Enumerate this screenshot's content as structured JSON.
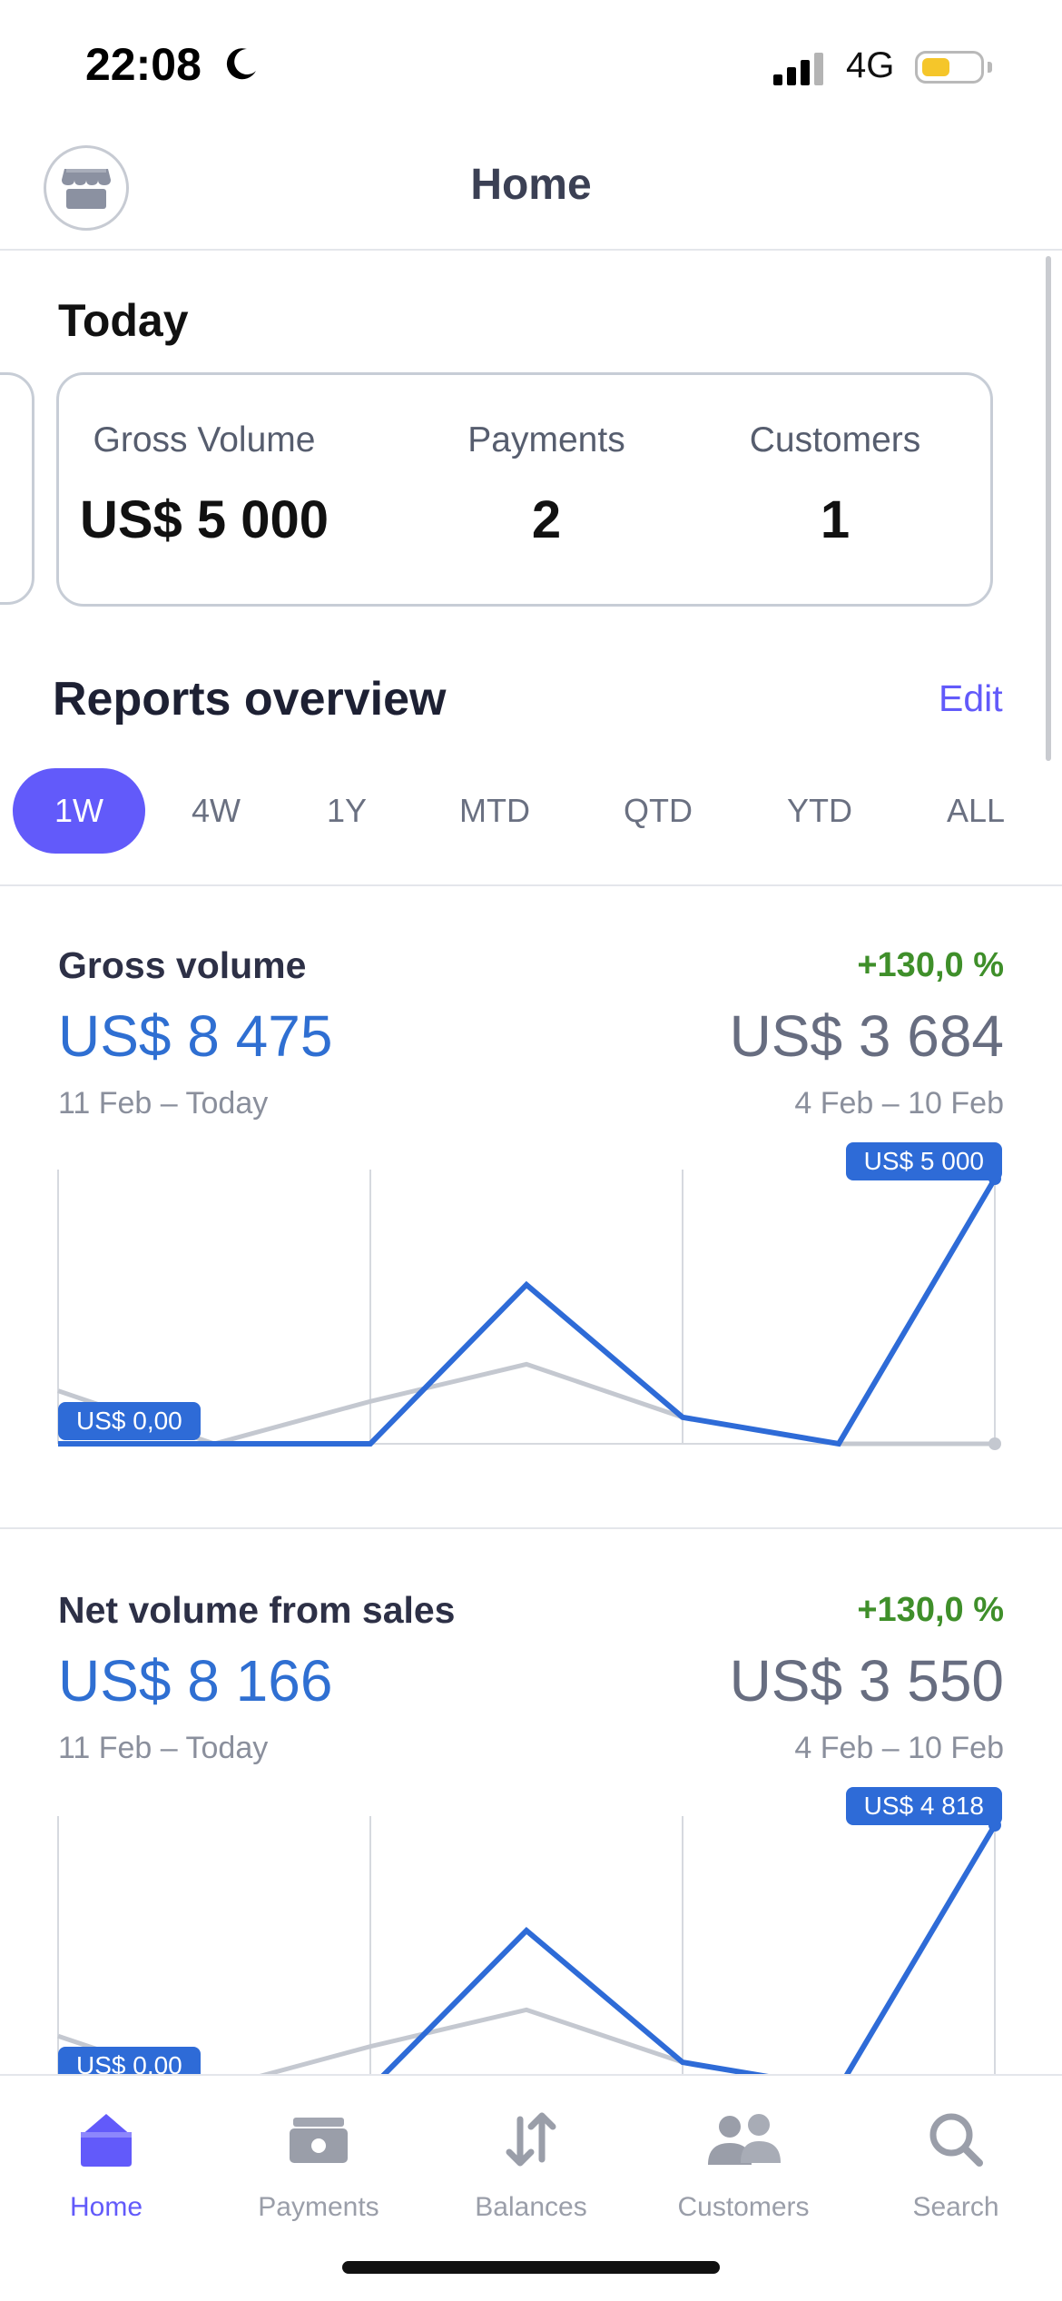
{
  "status_bar": {
    "time": "22:08",
    "network": "4G"
  },
  "nav": {
    "title": "Home"
  },
  "today": {
    "title": "Today",
    "metrics": [
      {
        "label": "Gross Volume",
        "value": "US$ 5 000"
      },
      {
        "label": "Payments",
        "value": "2"
      },
      {
        "label": "Customers",
        "value": "1"
      }
    ]
  },
  "reports": {
    "title": "Reports overview",
    "edit_label": "Edit",
    "tabs": [
      "1W",
      "4W",
      "1Y",
      "MTD",
      "QTD",
      "YTD",
      "ALL"
    ],
    "active_tab": "1W"
  },
  "sections": [
    {
      "title": "Gross volume",
      "change": "+130,0 %",
      "current_value": "US$ 8 475",
      "current_range": "11 Feb – Today",
      "previous_value": "US$ 3 684",
      "previous_range": "4 Feb – 10 Feb",
      "start_label": "US$ 0,00",
      "end_label": "US$ 5 000"
    },
    {
      "title": "Net volume from sales",
      "change": "+130,0 %",
      "current_value": "US$ 8 166",
      "current_range": "11 Feb – Today",
      "previous_value": "US$ 3 550",
      "previous_range": "4 Feb – 10 Feb",
      "start_label": "US$ 0,00",
      "end_label": "US$ 4 818"
    }
  ],
  "chart_data": [
    {
      "type": "line",
      "x": [
        1,
        2,
        3,
        4,
        5,
        6,
        7
      ],
      "ylim": [
        0,
        5000
      ],
      "series": [
        {
          "values": [
            0,
            0,
            0,
            3000,
            500,
            0,
            5000
          ],
          "color": "#2e6bd7"
        },
        {
          "values": [
            1000,
            0,
            800,
            1500,
            500,
            0,
            0
          ],
          "color": "#c4c8d0"
        }
      ]
    },
    {
      "type": "line",
      "x": [
        1,
        2,
        3,
        4,
        5,
        6,
        7
      ],
      "ylim": [
        0,
        4818
      ],
      "series": [
        {
          "values": [
            0,
            0,
            0,
            2890,
            480,
            0,
            4818
          ],
          "color": "#2e6bd7"
        },
        {
          "values": [
            960,
            0,
            770,
            1440,
            480,
            0,
            0
          ],
          "color": "#c4c8d0"
        }
      ]
    }
  ],
  "tabbar": {
    "items": [
      {
        "label": "Home",
        "icon": "home-icon",
        "active": true
      },
      {
        "label": "Payments",
        "icon": "payments-icon",
        "active": false
      },
      {
        "label": "Balances",
        "icon": "balances-icon",
        "active": false
      },
      {
        "label": "Customers",
        "icon": "customers-icon",
        "active": false
      },
      {
        "label": "Search",
        "icon": "search-icon",
        "active": false
      }
    ]
  },
  "colors": {
    "accent": "#625afa",
    "chart_current": "#2e6bd7",
    "chart_previous": "#c4c8d0",
    "positive": "#3f8f2a"
  }
}
